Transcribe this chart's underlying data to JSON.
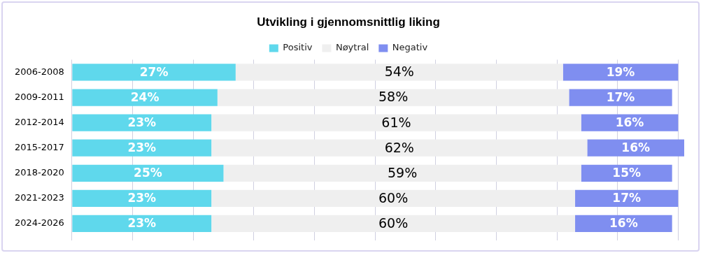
{
  "chart_data": {
    "type": "bar",
    "title": "Utvikling i gjennomsnittlig liking",
    "orientation": "horizontal",
    "stacked": true,
    "legend": "top",
    "grid": "x",
    "tick_labels": "y",
    "categories": [
      "2006-2008",
      "2009-2011",
      "2012-2014",
      "2015-2017",
      "2018-2020",
      "2021-2023",
      "2024-2026"
    ],
    "xlim": [
      0,
      101
    ],
    "xticks": [
      {
        "value": 0,
        "label": null
      },
      {
        "value": 10,
        "label": null
      },
      {
        "value": 20,
        "label": null
      },
      {
        "value": 30,
        "label": null
      },
      {
        "value": 40,
        "label": null
      },
      {
        "value": 50,
        "label": null
      },
      {
        "value": 60,
        "label": null
      },
      {
        "value": 70,
        "label": null
      },
      {
        "value": 80,
        "label": null
      },
      {
        "value": 90,
        "label": null
      },
      {
        "value": 100,
        "label": null
      }
    ],
    "series": [
      {
        "name": "Positiv",
        "color": "#5fd8ec",
        "values": [
          27,
          24,
          23,
          23,
          25,
          23,
          23
        ],
        "value_labels": [
          "27%",
          "24%",
          "23%",
          "23%",
          "25%",
          "23%",
          "23%"
        ]
      },
      {
        "name": "Nøytral",
        "color": "#efefef",
        "values": [
          54,
          58,
          61,
          62,
          59,
          60,
          60
        ],
        "value_labels": [
          "54%",
          "58%",
          "61%",
          "62%",
          "59%",
          "60%",
          "60%"
        ]
      },
      {
        "name": "Negativ",
        "color": "#7f8ef0",
        "values": [
          19,
          17,
          16,
          16,
          15,
          17,
          16
        ],
        "value_labels": [
          "19%",
          "17%",
          "16%",
          "16%",
          "15%",
          "17%",
          "16%"
        ]
      }
    ]
  }
}
